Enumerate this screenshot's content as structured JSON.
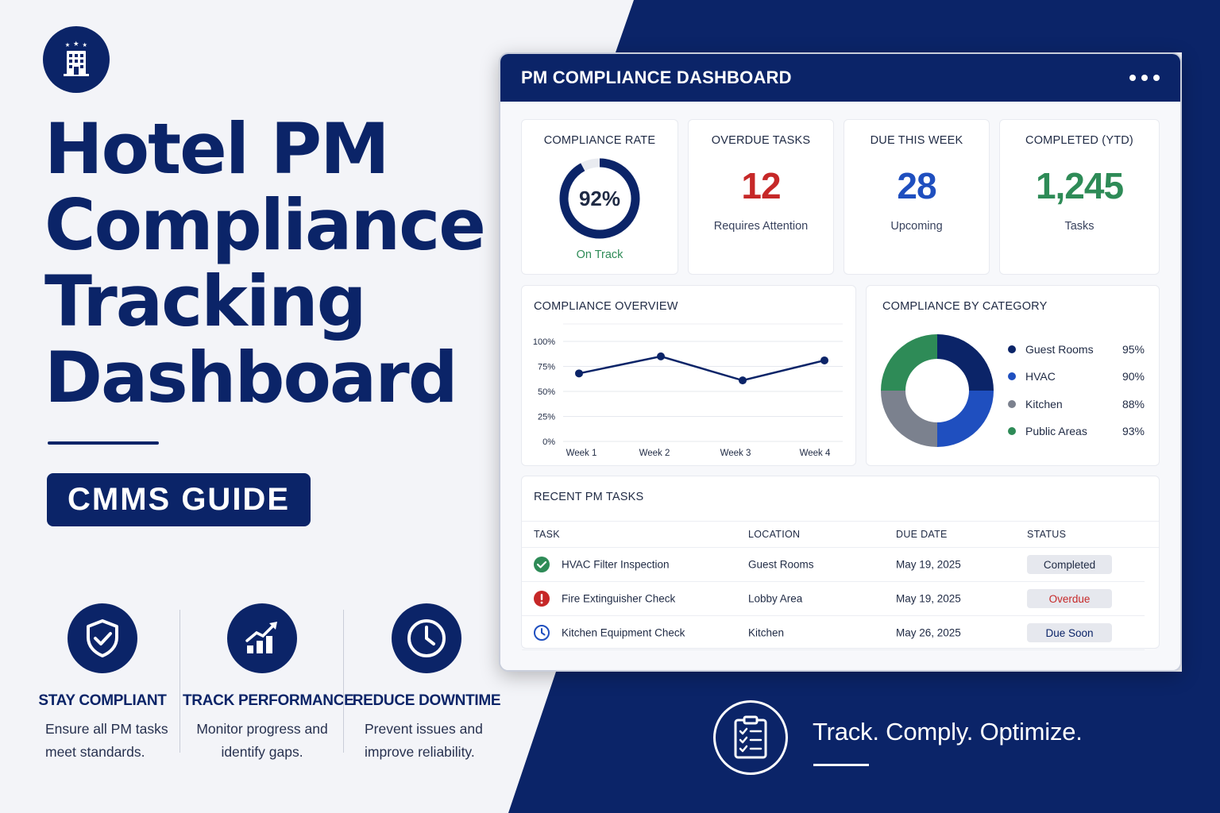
{
  "colors": {
    "navy": "#0b2468",
    "red": "#c62828",
    "blue": "#1f4fbf",
    "green": "#2e8b57",
    "gray": "#7b818e"
  },
  "hero": {
    "title_lines": [
      "Hotel PM",
      "Compliance",
      "Tracking",
      "Dashboard"
    ],
    "badge": "CMMS GUIDE",
    "logo_icon": "hotel-building-icon"
  },
  "features": [
    {
      "icon": "shield-check-icon",
      "title": "STAY COMPLIANT",
      "desc_lines": [
        "Ensure all PM tasks",
        "meet standards."
      ]
    },
    {
      "icon": "bar-chart-arrow-icon",
      "title": "TRACK PERFORMANCE",
      "desc_lines": [
        "Monitor progress and",
        "identify gaps."
      ]
    },
    {
      "icon": "clock-icon",
      "title": "REDUCE DOWNTIME",
      "desc_lines": [
        "Prevent issues and",
        "improve reliability."
      ]
    }
  ],
  "dashboard": {
    "title": "PM COMPLIANCE DASHBOARD",
    "menu_icon": "more-dots-icon",
    "kpis": {
      "compliance": {
        "label": "COMPLIANCE RATE",
        "value": "92%",
        "fraction": 0.92,
        "sub": "On Track"
      },
      "overdue": {
        "label": "OVERDUE TASKS",
        "value": "12",
        "sub": "Requires Attention"
      },
      "due_week": {
        "label": "DUE THIS WEEK",
        "value": "28",
        "sub": "Upcoming"
      },
      "completed": {
        "label": "COMPLETED (YTD)",
        "value": "1,245",
        "sub": "Tasks"
      }
    },
    "overview_title": "COMPLIANCE OVERVIEW",
    "category_title": "COMPLIANCE BY CATEGORY",
    "categories": [
      {
        "name": "Guest Rooms",
        "value": "95%",
        "color": "#0b2468"
      },
      {
        "name": "HVAC",
        "value": "90%",
        "color": "#1f4fbf"
      },
      {
        "name": "Kitchen",
        "value": "88%",
        "color": "#7b818e"
      },
      {
        "name": "Public Areas",
        "value": "93%",
        "color": "#2e8b57"
      }
    ],
    "recent": {
      "title": "RECENT PM TASKS",
      "headers": {
        "task": "TASK",
        "location": "LOCATION",
        "due": "DUE DATE",
        "status": "STATUS"
      },
      "rows": [
        {
          "icon": "check-circle-icon",
          "task": "HVAC Filter Inspection",
          "location": "Guest Rooms",
          "due": "May 19, 2025",
          "status": "Completed",
          "status_color": "#1f2a44"
        },
        {
          "icon": "alert-circle-icon",
          "task": "Fire Extinguisher Check",
          "location": "Lobby Area",
          "due": "May 19, 2025",
          "status": "Overdue",
          "status_color": "#c62828"
        },
        {
          "icon": "clock-outline-icon",
          "task": "Kitchen Equipment Check",
          "location": "Kitchen",
          "due": "May 26, 2025",
          "status": "Due Soon",
          "status_color": "#0b2468"
        }
      ]
    }
  },
  "chart_data": [
    {
      "type": "line",
      "title": "COMPLIANCE OVERVIEW",
      "categories": [
        "Week 1",
        "Week 2",
        "Week 3",
        "Week 4"
      ],
      "series": [
        {
          "values": [
            68,
            85,
            61,
            81
          ]
        }
      ],
      "ylim": [
        0,
        100
      ],
      "yticks": [
        "0%",
        "25%",
        "50%",
        "75%",
        "100%"
      ],
      "grid": true
    },
    {
      "type": "pie",
      "title": "COMPLIANCE BY CATEGORY",
      "categories": [
        "Guest Rooms",
        "HVAC",
        "Kitchen",
        "Public Areas"
      ],
      "values": [
        25,
        25,
        25,
        25
      ],
      "donut": true,
      "legend": "right"
    }
  ],
  "tagline": {
    "text": "Track. Comply. Optimize.",
    "icon": "clipboard-checklist-icon"
  }
}
